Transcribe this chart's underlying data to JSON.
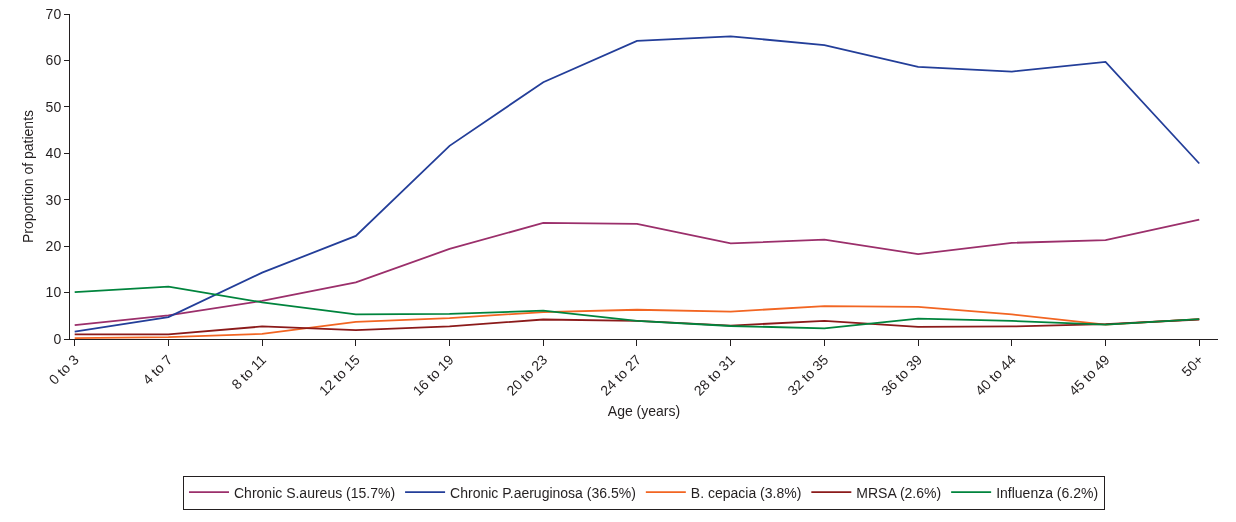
{
  "chart_data": {
    "type": "line",
    "xlabel": "Age (years)",
    "ylabel": "Proportion of patients",
    "categories": [
      "0 to 3",
      "4 to 7",
      "8 to 11",
      "12 to 15",
      "16 to 19",
      "20 to 23",
      "24 to 27",
      "28 to 31",
      "32 to 35",
      "36 to 39",
      "40 to 44",
      "45 to 49",
      "50+"
    ],
    "series": [
      {
        "name": "Chronic S.aureus (15.7%)",
        "color": "#9b2f6b",
        "values": [
          3.0,
          5.1,
          8.2,
          12.2,
          19.4,
          25.0,
          24.8,
          20.6,
          21.4,
          18.3,
          20.7,
          21.3,
          25.7
        ]
      },
      {
        "name": "Chronic P.aeruginosa (36.5%)",
        "color": "#233e99",
        "values": [
          1.6,
          4.7,
          14.3,
          22.2,
          41.6,
          55.3,
          64.2,
          65.2,
          63.3,
          58.6,
          57.6,
          59.7,
          37.8
        ]
      },
      {
        "name": "B. cepacia (3.8%)",
        "color": "#f26522",
        "values": [
          0.2,
          0.4,
          1.1,
          3.7,
          4.5,
          5.8,
          6.3,
          5.9,
          7.1,
          6.9,
          5.3,
          3.1,
          4.3
        ]
      },
      {
        "name": "MRSA (2.6%)",
        "color": "#8b1a1a",
        "values": [
          1.0,
          1.0,
          2.7,
          1.9,
          2.7,
          4.2,
          3.9,
          2.9,
          3.9,
          2.6,
          2.7,
          3.2,
          4.2
        ]
      },
      {
        "name": "Influenza (6.2%)",
        "color": "#00843d",
        "values": [
          10.1,
          11.3,
          7.9,
          5.3,
          5.4,
          6.1,
          3.9,
          2.8,
          2.3,
          4.4,
          3.9,
          3.1,
          4.3
        ]
      }
    ],
    "ylim": [
      0,
      70
    ],
    "yticks": [
      0,
      10,
      20,
      30,
      40,
      50,
      60,
      70
    ],
    "grid": false,
    "legend": "bottom",
    "marker": "none",
    "line_style": "solid"
  }
}
